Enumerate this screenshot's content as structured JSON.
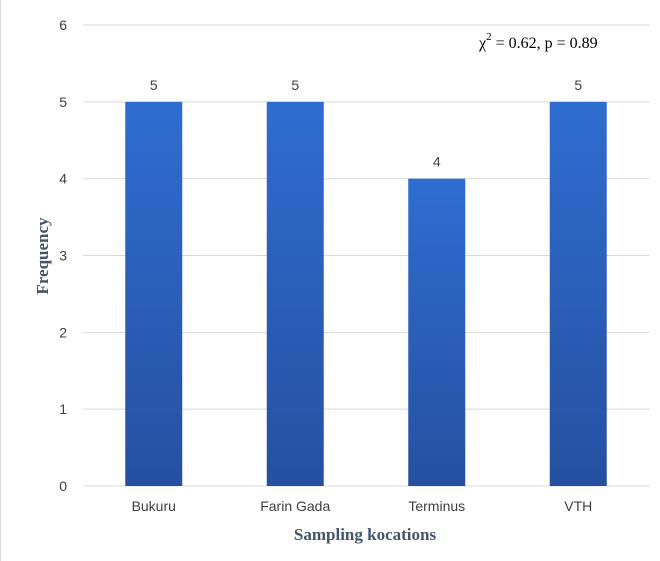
{
  "chart_data": {
    "type": "bar",
    "categories": [
      "Bukuru",
      "Farin Gada",
      "Terminus",
      "VTH"
    ],
    "values": [
      5,
      5,
      4,
      5
    ],
    "data_labels": [
      "5",
      "5",
      "4",
      "5"
    ],
    "xlabel": "Sampling kocations",
    "ylabel": "Frequency",
    "ylim": [
      0,
      6
    ],
    "yticks": [
      0,
      1,
      2,
      3,
      4,
      5,
      6
    ],
    "grid": true,
    "legend": "none",
    "annotation": {
      "symbol": "χ",
      "superscript": "2",
      "text": " = 0.62, p = 0.89"
    },
    "colors": {
      "bar_top": "#2f6dd1",
      "bar_bottom": "#2550a0",
      "grid": "#d9d9d9",
      "axis_title": "#44546a"
    }
  }
}
